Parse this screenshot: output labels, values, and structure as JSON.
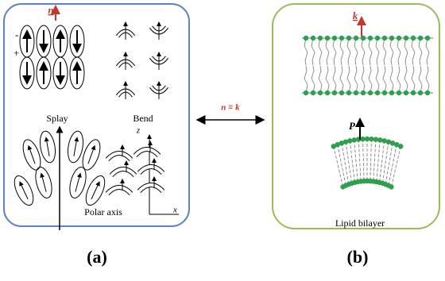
{
  "panel_a": {
    "director": "n",
    "minus": "-",
    "plus": "+",
    "splay": "Splay",
    "bend": "Bend",
    "z_axis": "z",
    "polar_axis": "Polar axis",
    "x_axis": "x",
    "caption": "(a)"
  },
  "relation": "n ≡ k",
  "panel_b": {
    "normal": "k",
    "polarization": "P",
    "lipid": "Lipid bilayer",
    "caption": "(b)"
  }
}
